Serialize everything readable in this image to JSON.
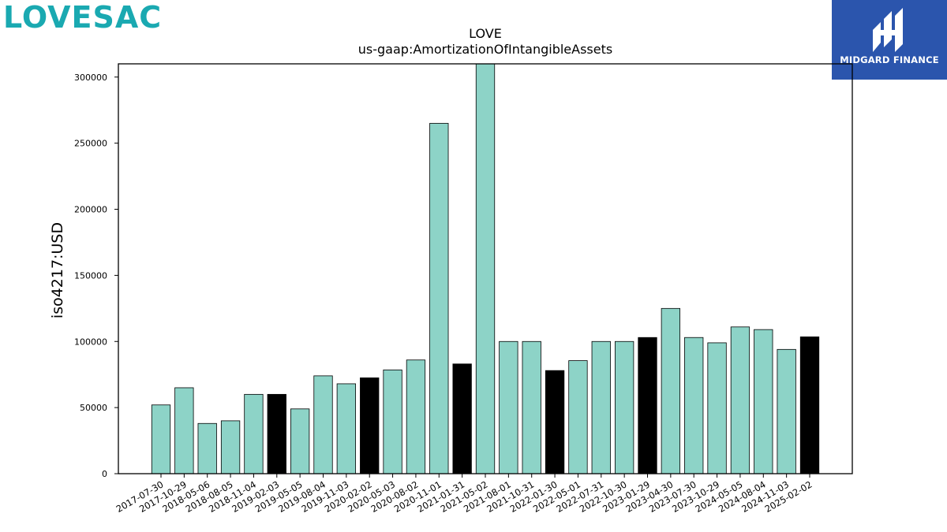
{
  "brand": {
    "logo_text": "LOVESAC"
  },
  "partner": {
    "logo_text": "MIDGARD FINANCE"
  },
  "colors": {
    "bar": "#8dd3c7",
    "highlight": "#000000",
    "brand": "#1aa9b1",
    "partner_bg": "#2b55ad"
  },
  "chart_data": {
    "type": "bar",
    "title": "LOVE",
    "subtitle": "us-gaap:AmortizationOfIntangibleAssets",
    "xlabel": "",
    "ylabel": "iso4217:USD",
    "ylim": [
      0,
      310000
    ],
    "yticks": [
      0,
      50000,
      100000,
      150000,
      200000,
      250000,
      300000
    ],
    "grid": false,
    "categories": [
      "2017-07-30",
      "2017-10-29",
      "2018-05-06",
      "2018-08-05",
      "2018-11-04",
      "2019-02-03",
      "2019-05-05",
      "2019-08-04",
      "2019-11-03",
      "2020-02-02",
      "2020-05-03",
      "2020-08-02",
      "2020-11-01",
      "2021-01-31",
      "2021-05-02",
      "2021-08-01",
      "2021-10-31",
      "2022-01-30",
      "2022-05-01",
      "2022-07-31",
      "2022-10-30",
      "2023-01-29",
      "2023-04-30",
      "2023-07-30",
      "2023-10-29",
      "2024-05-05",
      "2024-08-04",
      "2024-11-03",
      "2025-02-02"
    ],
    "values": [
      52000,
      65000,
      38000,
      40000,
      60000,
      60000,
      49000,
      74000,
      68000,
      72500,
      78500,
      86000,
      265000,
      83000,
      310000,
      100000,
      100000,
      78000,
      85500,
      100000,
      100000,
      103000,
      125000,
      103000,
      99000,
      111000,
      109000,
      94000,
      103500
    ],
    "highlighted": [
      false,
      false,
      false,
      false,
      false,
      true,
      false,
      false,
      false,
      true,
      false,
      false,
      false,
      true,
      false,
      false,
      false,
      true,
      false,
      false,
      false,
      true,
      false,
      false,
      false,
      false,
      false,
      false,
      true
    ]
  }
}
